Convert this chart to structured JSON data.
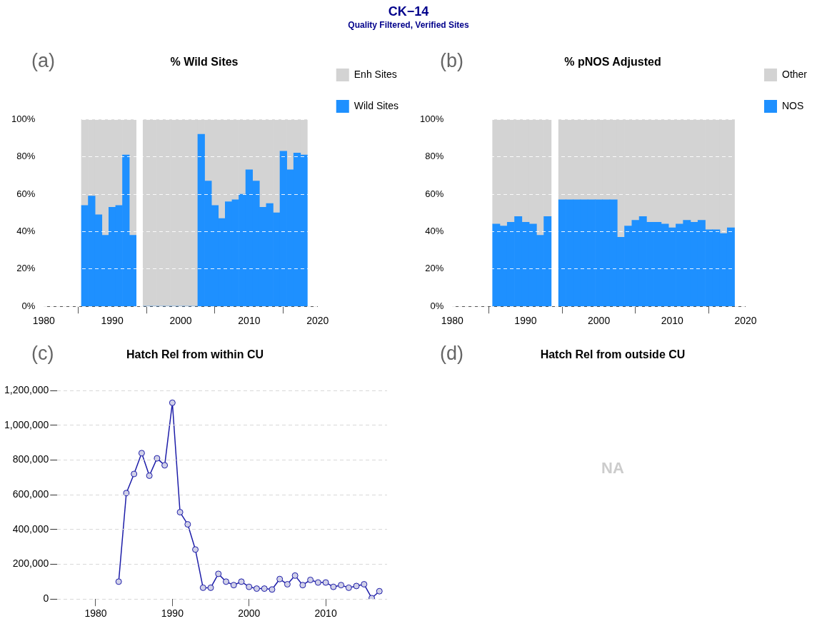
{
  "chart_data": [
    {
      "type": "other",
      "title": "CK−14",
      "subtitle": "Quality Filtered, Verified Sites"
    },
    {
      "type": "bar",
      "title": "% Wild Sites",
      "annotations": [
        "(a)"
      ],
      "stacked": true,
      "legend": "top right",
      "grid": "y",
      "x": [
        1986,
        1987,
        1988,
        1989,
        1990,
        1991,
        1992,
        1993,
        1995,
        1996,
        1997,
        1998,
        1999,
        2000,
        2001,
        2002,
        2003,
        2004,
        2005,
        2006,
        2007,
        2008,
        2009,
        2010,
        2011,
        2012,
        2013,
        2014,
        2015,
        2016,
        2017,
        2018
      ],
      "xlim": [
        1980,
        2020
      ],
      "xticks": [
        1980,
        1990,
        2000,
        2010,
        2020
      ],
      "ylim": [
        0,
        100
      ],
      "yticks": [
        {
          "value": 0,
          "label": "0%"
        },
        {
          "value": 20,
          "label": "20%"
        },
        {
          "value": 40,
          "label": "40%"
        },
        {
          "value": 60,
          "label": "60%"
        },
        {
          "value": 80,
          "label": "80%"
        },
        {
          "value": 100,
          "label": "100%"
        }
      ],
      "series": [
        {
          "name": "Wild Sites",
          "color": "#1e90ff",
          "values": [
            54,
            59,
            49,
            38,
            53,
            54,
            81,
            38,
            0,
            0,
            0,
            0,
            0,
            0,
            0,
            0,
            92,
            67,
            54,
            47,
            56,
            57,
            60,
            73,
            67,
            53,
            55,
            50,
            83,
            73,
            82,
            81
          ]
        },
        {
          "name": "Enh Sites",
          "color": "#d3d3d3",
          "values": [
            46,
            41,
            51,
            62,
            47,
            46,
            19,
            62,
            100,
            100,
            100,
            100,
            100,
            100,
            100,
            100,
            8,
            33,
            46,
            53,
            44,
            43,
            40,
            27,
            33,
            47,
            45,
            50,
            17,
            27,
            18,
            19
          ]
        }
      ]
    },
    {
      "type": "bar",
      "title": "% pNOS Adjusted",
      "annotations": [
        "(b)"
      ],
      "stacked": true,
      "legend": "top right",
      "grid": "y",
      "x": [
        1986,
        1987,
        1988,
        1989,
        1990,
        1991,
        1992,
        1993,
        1995,
        1996,
        1997,
        1998,
        1999,
        2000,
        2001,
        2002,
        2003,
        2004,
        2005,
        2006,
        2007,
        2008,
        2009,
        2010,
        2011,
        2012,
        2013,
        2014,
        2015,
        2016,
        2017,
        2018
      ],
      "xlim": [
        1980,
        2020
      ],
      "xticks": [
        1980,
        1990,
        2000,
        2010,
        2020
      ],
      "ylim": [
        0,
        100
      ],
      "yticks": [
        {
          "value": 0,
          "label": "0%"
        },
        {
          "value": 20,
          "label": "20%"
        },
        {
          "value": 40,
          "label": "40%"
        },
        {
          "value": 60,
          "label": "60%"
        },
        {
          "value": 80,
          "label": "80%"
        },
        {
          "value": 100,
          "label": "100%"
        }
      ],
      "series": [
        {
          "name": "NOS",
          "color": "#1e90ff",
          "values": [
            44,
            43,
            45,
            48,
            45,
            44,
            38,
            48,
            57,
            57,
            57,
            57,
            57,
            57,
            57,
            57,
            37,
            43,
            46,
            48,
            45,
            45,
            44,
            42,
            44,
            46,
            45,
            46,
            41,
            41,
            39,
            42
          ]
        },
        {
          "name": "Other",
          "color": "#d3d3d3",
          "values": [
            56,
            57,
            55,
            52,
            55,
            56,
            62,
            52,
            43,
            43,
            43,
            43,
            43,
            43,
            43,
            43,
            63,
            57,
            54,
            52,
            55,
            55,
            56,
            58,
            56,
            54,
            55,
            54,
            59,
            59,
            61,
            58
          ]
        }
      ]
    },
    {
      "type": "line",
      "title": "Hatch Rel from within CU",
      "annotations": [
        "(c)"
      ],
      "grid": "y",
      "marker": "circle",
      "line_style": "solid",
      "x": [
        1983,
        1984,
        1985,
        1986,
        1987,
        1988,
        1989,
        1990,
        1991,
        1992,
        1993,
        1994,
        1995,
        1996,
        1997,
        1998,
        1999,
        2000,
        2001,
        2002,
        2003,
        2004,
        2005,
        2006,
        2007,
        2008,
        2009,
        2010,
        2011,
        2012,
        2013,
        2014,
        2015,
        2016,
        2017
      ],
      "xlim": [
        1975,
        2018
      ],
      "xticks": [
        1980,
        1990,
        2000,
        2010
      ],
      "ylim": [
        0,
        1200000
      ],
      "yticks": [
        {
          "value": 0,
          "label": "0"
        },
        {
          "value": 200000,
          "label": "200,000"
        },
        {
          "value": 400000,
          "label": "400,000"
        },
        {
          "value": 600000,
          "label": "600,000"
        },
        {
          "value": 800000,
          "label": "800,000"
        },
        {
          "value": 1000000,
          "label": "1,000,000"
        },
        {
          "value": 1200000,
          "label": "1,200,000"
        }
      ],
      "series": [
        {
          "color": "#1c1ca8",
          "values": [
            100000,
            610000,
            720000,
            840000,
            710000,
            810000,
            770000,
            1130000,
            500000,
            430000,
            285000,
            65000,
            65000,
            145000,
            100000,
            80000,
            100000,
            70000,
            60000,
            60000,
            55000,
            115000,
            85000,
            135000,
            80000,
            110000,
            95000,
            95000,
            70000,
            80000,
            65000,
            75000,
            85000,
            5000,
            45000
          ]
        }
      ]
    },
    {
      "type": "other",
      "title": "Hatch Rel from outside CU",
      "annotations": [
        "(d)",
        "NA"
      ]
    }
  ]
}
